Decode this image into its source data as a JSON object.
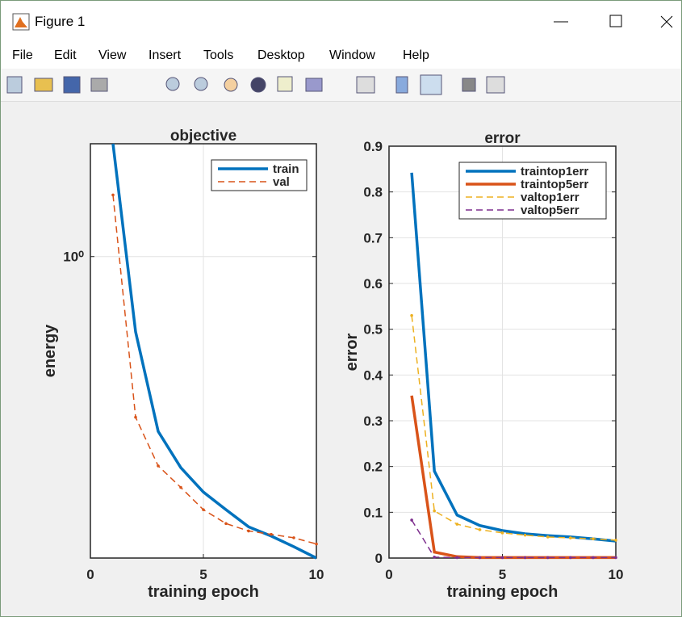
{
  "window": {
    "title": "Figure 1",
    "menu": [
      "File",
      "Edit",
      "View",
      "Insert",
      "Tools",
      "Desktop",
      "Window",
      "Help"
    ]
  },
  "chart_data": [
    {
      "type": "line",
      "title": "objective",
      "xlabel": "training epoch",
      "ylabel": "energy",
      "yscale": "log",
      "grid": true,
      "legend": "northeast",
      "x": [
        1,
        2,
        3,
        4,
        5,
        6,
        7,
        8,
        9,
        10
      ],
      "xlim": [
        0,
        10
      ],
      "xticks": [
        0,
        5,
        10
      ],
      "ylim": [
        0.18,
        1.9
      ],
      "yticks": [
        {
          "value": 1,
          "label": "10⁰"
        }
      ],
      "series": [
        {
          "name": "train",
          "color": "#0072bd",
          "style": "solid",
          "values": [
            1.9,
            0.652,
            0.37,
            0.301,
            0.262,
            0.237,
            0.215,
            0.204,
            0.192,
            0.18
          ]
        },
        {
          "name": "val",
          "color": "#d95319",
          "style": "dashed",
          "values": [
            1.42,
            0.401,
            0.304,
            0.269,
            0.237,
            0.219,
            0.21,
            0.206,
            0.202,
            0.195
          ]
        }
      ]
    },
    {
      "type": "line",
      "title": "error",
      "xlabel": "training epoch",
      "ylabel": "error",
      "grid": true,
      "legend": "northeast",
      "x": [
        1,
        2,
        3,
        4,
        5,
        6,
        7,
        8,
        9,
        10
      ],
      "xlim": [
        0,
        10
      ],
      "xticks": [
        0,
        5,
        10
      ],
      "ylim": [
        0,
        0.9
      ],
      "yticks": [
        0,
        0.1,
        0.2,
        0.3,
        0.4,
        0.5,
        0.6,
        0.7,
        0.8,
        0.9
      ],
      "series": [
        {
          "name": "traintop1err",
          "color": "#0072bd",
          "style": "solid",
          "values": [
            0.842,
            0.19,
            0.094,
            0.071,
            0.06,
            0.053,
            0.049,
            0.046,
            0.042,
            0.037
          ]
        },
        {
          "name": "traintop5err",
          "color": "#d95319",
          "style": "solid",
          "values": [
            0.355,
            0.013,
            0.003,
            0.001,
            0.001,
            0.001,
            0.001,
            0.001,
            0.001,
            0.001
          ]
        },
        {
          "name": "valtop1err",
          "color": "#edb120",
          "style": "dashed",
          "values": [
            0.53,
            0.103,
            0.074,
            0.062,
            0.055,
            0.05,
            0.046,
            0.044,
            0.042,
            0.039
          ]
        },
        {
          "name": "valtop5err",
          "color": "#7e2f8e",
          "style": "dashed",
          "values": [
            0.083,
            0.002,
            0.001,
            0.001,
            0.001,
            0.001,
            0.001,
            0.001,
            0.001,
            0.001
          ]
        }
      ]
    }
  ]
}
